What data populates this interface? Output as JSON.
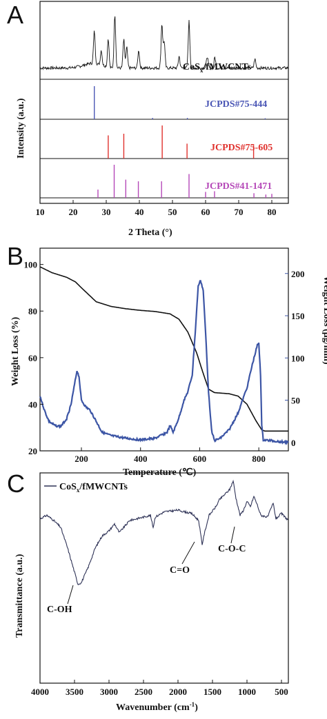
{
  "panels": {
    "a": "A",
    "b": "B",
    "c": "C"
  },
  "chart_data": [
    {
      "type": "line",
      "panel": "A",
      "xlabel": "2 Theta",
      "xlabel_unit": "(°)",
      "ylabel": "Intensity (a.u.)",
      "xlim": [
        10,
        85
      ],
      "xticks": [
        10,
        20,
        30,
        40,
        50,
        60,
        70,
        80
      ],
      "series": [
        {
          "name": "CoSx/fMWCNTs",
          "color": "#111111",
          "peaks": [
            [
              26.4,
              0.55
            ],
            [
              28.5,
              0.25
            ],
            [
              30.6,
              0.5
            ],
            [
              32.6,
              0.92
            ],
            [
              35.3,
              0.48
            ],
            [
              36.2,
              0.35
            ],
            [
              39.8,
              0.3
            ],
            [
              46.8,
              0.75
            ],
            [
              47.5,
              0.45
            ],
            [
              52.0,
              0.2
            ],
            [
              55.0,
              0.8
            ],
            [
              60.5,
              0.2
            ],
            [
              62.8,
              0.18
            ],
            [
              74.9,
              0.15
            ]
          ]
        },
        {
          "name": "JCPDS#75-444",
          "color": "#4a56b5",
          "sticks": [
            [
              26.4,
              1.0
            ],
            [
              44.0,
              0.04
            ],
            [
              54.5,
              0.04
            ],
            [
              78.0,
              0.03
            ]
          ]
        },
        {
          "name": "JCPDS#75-605",
          "color": "#e0312d",
          "sticks": [
            [
              30.6,
              0.7
            ],
            [
              35.3,
              0.75
            ],
            [
              46.9,
              1.0
            ],
            [
              54.4,
              0.45
            ],
            [
              74.5,
              0.4
            ]
          ]
        },
        {
          "name": "JCPDS#41-1471",
          "color": "#b548b8",
          "sticks": [
            [
              27.5,
              0.25
            ],
            [
              32.4,
              1.0
            ],
            [
              35.9,
              0.55
            ],
            [
              39.7,
              0.5
            ],
            [
              46.7,
              0.5
            ],
            [
              55.0,
              0.72
            ],
            [
              60.0,
              0.18
            ],
            [
              62.7,
              0.2
            ],
            [
              74.6,
              0.14
            ],
            [
              78.2,
              0.1
            ],
            [
              80.0,
              0.12
            ]
          ]
        }
      ]
    },
    {
      "type": "line",
      "panel": "B",
      "xlabel": "Temperature (℃)",
      "ylabel": "Weight Loss (%)",
      "ylabel_right": "Weight Loss (µg/min)",
      "xlim": [
        60,
        900
      ],
      "xticks": [
        200,
        400,
        600,
        800
      ],
      "ylim": [
        20,
        107
      ],
      "yticks": [
        20,
        40,
        60,
        80,
        100
      ],
      "ylim_right": [
        -10,
        230
      ],
      "yticks_right": [
        0,
        50,
        100,
        150,
        200
      ],
      "series": [
        {
          "name": "Weight loss (%)",
          "color": "#111111",
          "axis": "left",
          "points": [
            [
              60,
              99
            ],
            [
              100,
              96.5
            ],
            [
              150,
              94.5
            ],
            [
              180,
              92.5
            ],
            [
              200,
              90
            ],
            [
              250,
              84
            ],
            [
              300,
              82
            ],
            [
              350,
              81
            ],
            [
              400,
              80.3
            ],
            [
              450,
              79.8
            ],
            [
              500,
              78.8
            ],
            [
              530,
              76.5
            ],
            [
              560,
              71
            ],
            [
              590,
              62
            ],
            [
              610,
              54
            ],
            [
              630,
              46.5
            ],
            [
              650,
              45
            ],
            [
              700,
              44.5
            ],
            [
              730,
              43.5
            ],
            [
              760,
              40
            ],
            [
              790,
              33
            ],
            [
              810,
              29
            ],
            [
              820,
              28.5
            ],
            [
              900,
              28.5
            ]
          ]
        },
        {
          "name": "Weight loss (µg/min)",
          "color": "#3c55a5",
          "axis": "right",
          "points": [
            [
              60,
              55
            ],
            [
              75,
              38
            ],
            [
              90,
              25
            ],
            [
              110,
              20
            ],
            [
              130,
              19
            ],
            [
              150,
              28
            ],
            [
              165,
              45
            ],
            [
              175,
              65
            ],
            [
              185,
              85
            ],
            [
              192,
              78
            ],
            [
              200,
              50
            ],
            [
              215,
              42
            ],
            [
              230,
              38
            ],
            [
              250,
              25
            ],
            [
              270,
              12
            ],
            [
              300,
              8
            ],
            [
              350,
              5
            ],
            [
              400,
              3
            ],
            [
              450,
              5
            ],
            [
              490,
              12
            ],
            [
              500,
              20
            ],
            [
              510,
              12
            ],
            [
              520,
              20
            ],
            [
              535,
              35
            ],
            [
              545,
              48
            ],
            [
              560,
              60
            ],
            [
              575,
              80
            ],
            [
              585,
              130
            ],
            [
              595,
              185
            ],
            [
              603,
              192
            ],
            [
              612,
              180
            ],
            [
              620,
              130
            ],
            [
              630,
              60
            ],
            [
              640,
              15
            ],
            [
              650,
              2
            ],
            [
              670,
              5
            ],
            [
              700,
              15
            ],
            [
              730,
              35
            ],
            [
              760,
              65
            ],
            [
              780,
              95
            ],
            [
              795,
              115
            ],
            [
              800,
              117
            ],
            [
              806,
              80
            ],
            [
              810,
              20
            ],
            [
              815,
              3
            ],
            [
              900,
              0
            ]
          ]
        }
      ]
    },
    {
      "type": "line",
      "panel": "C",
      "xlabel": "Wavenumber (cm⁻¹)",
      "ylabel": "Transmittance (a.u.)",
      "xlim": [
        4000,
        400
      ],
      "xticks": [
        4000,
        3500,
        3000,
        2500,
        2000,
        1500,
        1000,
        500
      ],
      "annotations": [
        "C-OH",
        "C=O",
        "C-O-C"
      ],
      "series": [
        {
          "name": "CoSx/fMWCNTs",
          "color": "#2e3256",
          "points": [
            [
              4000,
              0.83
            ],
            [
              3900,
              0.85
            ],
            [
              3800,
              0.82
            ],
            [
              3700,
              0.78
            ],
            [
              3600,
              0.66
            ],
            [
              3500,
              0.52
            ],
            [
              3450,
              0.45
            ],
            [
              3400,
              0.46
            ],
            [
              3300,
              0.55
            ],
            [
              3200,
              0.66
            ],
            [
              3100,
              0.73
            ],
            [
              3000,
              0.76
            ],
            [
              2920,
              0.8
            ],
            [
              2850,
              0.75
            ],
            [
              2700,
              0.82
            ],
            [
              2500,
              0.84
            ],
            [
              2400,
              0.85
            ],
            [
              2360,
              0.78
            ],
            [
              2330,
              0.84
            ],
            [
              2200,
              0.87
            ],
            [
              2000,
              0.88
            ],
            [
              1800,
              0.86
            ],
            [
              1700,
              0.82
            ],
            [
              1650,
              0.68
            ],
            [
              1620,
              0.74
            ],
            [
              1550,
              0.85
            ],
            [
              1450,
              0.9
            ],
            [
              1400,
              0.94
            ],
            [
              1300,
              0.98
            ],
            [
              1250,
              1.0
            ],
            [
              1200,
              1.05
            ],
            [
              1160,
              0.95
            ],
            [
              1100,
              0.85
            ],
            [
              1050,
              0.88
            ],
            [
              1000,
              0.93
            ],
            [
              950,
              0.9
            ],
            [
              900,
              0.96
            ],
            [
              850,
              0.91
            ],
            [
              800,
              0.85
            ],
            [
              700,
              0.84
            ],
            [
              620,
              0.92
            ],
            [
              580,
              0.83
            ],
            [
              500,
              0.86
            ],
            [
              400,
              0.82
            ]
          ]
        }
      ]
    }
  ]
}
